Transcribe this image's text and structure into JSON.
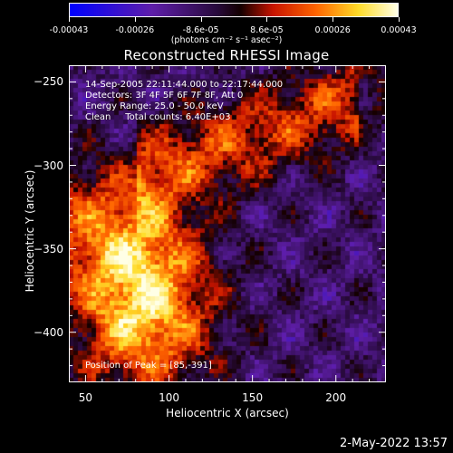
{
  "colorbar": {
    "tick_labels": [
      "-0.00043",
      "-0.00026",
      "-8.6e-05",
      "8.6e-05",
      "0.00026",
      "0.00043"
    ],
    "range": [
      -0.00043,
      0.00043
    ],
    "colormap": "rhessi-blue-purple-red-yellow-white",
    "units_label": "(photons cm⁻² s⁻¹ asec⁻²)"
  },
  "chart_data": {
    "type": "heatmap",
    "title": "Reconstructed RHESSI Image",
    "xlabel": "Heliocentric X (arcsec)",
    "ylabel": "Heliocentric Y (arcsec)",
    "xlim": [
      40,
      230
    ],
    "ylim": [
      -430,
      -240
    ],
    "x_ticks": [
      50,
      100,
      150,
      200
    ],
    "y_ticks": [
      -250,
      -300,
      -350,
      -400
    ],
    "x_tick_labels": [
      "50",
      "100",
      "150",
      "200"
    ],
    "y_tick_labels": [
      "−250",
      "−300",
      "−350",
      "−400"
    ],
    "value_range": [
      -0.00043,
      0.00043
    ],
    "peak_position": [
      85,
      -391
    ],
    "annotations": {
      "time_range": "14-Sep-2005 22:11:44.000 to 22:17:44.000",
      "detectors": "Detectors: 3F 4F 5F 6F 7F 8F, Att 0",
      "energy_range": "Energy Range: 25.0 - 50.0 keV",
      "clean": "Clean     Total counts: 6.40E+03",
      "peak": "Position of Peak = [85,-391]"
    }
  },
  "footer": {
    "date_stamp": "2-May-2022 13:57"
  }
}
